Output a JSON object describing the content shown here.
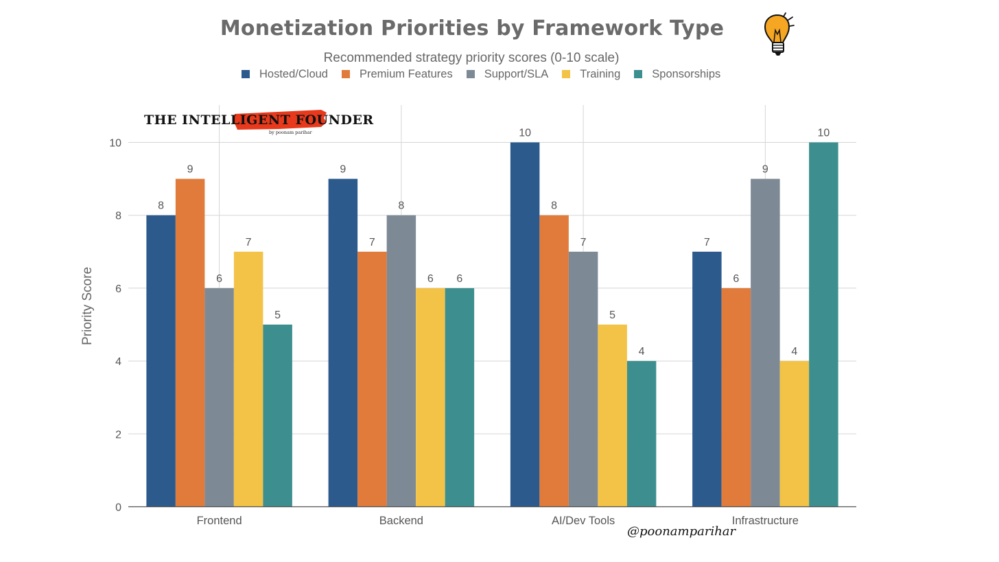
{
  "header": {
    "title": "Monetization Priorities by Framework Type",
    "subtitle": "Recommended strategy priority scores (0-10 scale)"
  },
  "branding": {
    "logo_text": "THE INTELLIGENT FOUNDER",
    "logo_subtext": "by poonam parihar",
    "handle": "@poonamparihar",
    "bulb_icon": "lightbulb-icon"
  },
  "colors": {
    "hosted": "#2c5a8c",
    "premium": "#e07b3c",
    "support": "#7d8a95",
    "training": "#f2c347",
    "sponsorships": "#3d8f8f",
    "grid": "#d5d5d5",
    "axis": "#555555",
    "brush": "#e8391c",
    "bulb": "#f5a623"
  },
  "chart_data": {
    "type": "bar",
    "title": "Monetization Priorities by Framework Type",
    "subtitle": "Recommended strategy priority scores (0-10 scale)",
    "xlabel": "",
    "ylabel": "Priority Score",
    "ylim": [
      0,
      11
    ],
    "yticks": [
      0,
      2,
      4,
      6,
      8,
      10
    ],
    "grid": true,
    "legend_position": "top",
    "categories": [
      "Frontend",
      "Backend",
      "AI/Dev Tools",
      "Infrastructure"
    ],
    "series": [
      {
        "name": "Hosted/Cloud",
        "color_key": "hosted",
        "values": [
          8,
          9,
          10,
          7
        ]
      },
      {
        "name": "Premium Features",
        "color_key": "premium",
        "values": [
          9,
          7,
          8,
          6
        ]
      },
      {
        "name": "Support/SLA",
        "color_key": "support",
        "values": [
          6,
          8,
          7,
          9
        ]
      },
      {
        "name": "Training",
        "color_key": "training",
        "values": [
          7,
          6,
          5,
          4
        ]
      },
      {
        "name": "Sponsorships",
        "color_key": "sponsorships",
        "values": [
          5,
          6,
          4,
          10
        ]
      }
    ]
  }
}
